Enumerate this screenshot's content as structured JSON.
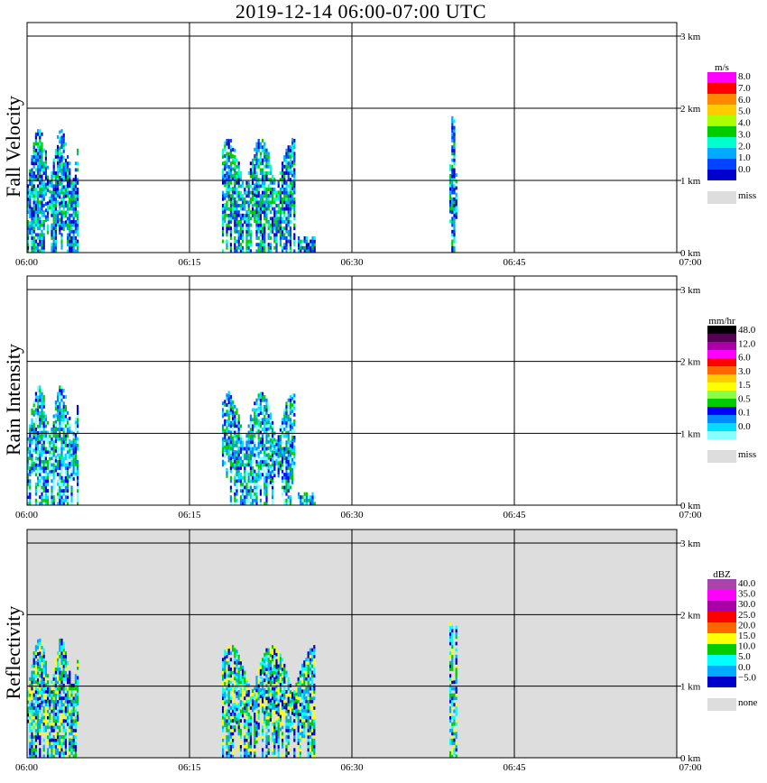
{
  "title": "2019-12-14   06:00-07:00 UTC",
  "x_ticks": [
    "06:00",
    "06:15",
    "06:30",
    "06:45",
    "07:00"
  ],
  "y_ticks": [
    "0 km",
    "1 km",
    "2 km",
    "3 km"
  ],
  "chart_data": [
    {
      "type": "heatmap",
      "title": "Fall Velocity",
      "xlabel": "",
      "ylabel": "Fall Velocity",
      "xlim": [
        "06:00",
        "07:00"
      ],
      "ylim": [
        0,
        3
      ],
      "background": "#ffffff",
      "legend": {
        "unit": "m/s",
        "labels": [
          "8.0",
          "7.0",
          "6.0",
          "5.0",
          "4.0",
          "3.0",
          "2.0",
          "1.0",
          "0.0",
          "miss"
        ],
        "colors": [
          "#ff00ff",
          "#ff0000",
          "#ff8800",
          "#ffcc00",
          "#aaff00",
          "#00cc00",
          "#00ffcc",
          "#00aaff",
          "#0044ff",
          "#0000cc"
        ],
        "miss_color": "#dddddd"
      },
      "echoes": [
        {
          "x0": "06:00",
          "x1": "06:04",
          "ytop": 1.7
        },
        {
          "x0": "06:18",
          "x1": "06:24",
          "ytop": 1.55
        },
        {
          "x0": "06:25",
          "x1": "06:26",
          "ytop": 0.2
        },
        {
          "x0": "06:39",
          "x1": "06:39",
          "ytop": 1.95
        }
      ]
    },
    {
      "type": "heatmap",
      "title": "Rain Intensity",
      "xlabel": "",
      "ylabel": "Rain Intensity",
      "xlim": [
        "06:00",
        "07:00"
      ],
      "ylim": [
        0,
        3
      ],
      "background": "#ffffff",
      "legend": {
        "unit": "mm/hr",
        "labels": [
          "48.0",
          "12.0",
          "6.0",
          "3.0",
          "1.5",
          "0.5",
          "0.1",
          "0.0",
          "miss"
        ],
        "colors": [
          "#000000",
          "#550055",
          "#aa00aa",
          "#ff00ff",
          "#ff0000",
          "#ff6600",
          "#ffcc00",
          "#ffff00",
          "#88ff44",
          "#00cc00",
          "#0000ff",
          "#0088ff",
          "#00ddff",
          "#88ffff"
        ],
        "miss_color": "#dddddd"
      },
      "echoes": [
        {
          "x0": "06:00",
          "x1": "06:04",
          "ytop": 1.65
        },
        {
          "x0": "06:18",
          "x1": "06:24",
          "ytop": 1.55
        },
        {
          "x0": "06:25",
          "x1": "06:26",
          "ytop": 0.15
        }
      ]
    },
    {
      "type": "heatmap",
      "title": "Reflectivity",
      "xlabel": "",
      "ylabel": "Reflectivity",
      "xlim": [
        "06:00",
        "07:00"
      ],
      "ylim": [
        0,
        3
      ],
      "background": "#dddddd",
      "legend": {
        "unit": "dBZ",
        "labels": [
          "40.0",
          "35.0",
          "30.0",
          "25.0",
          "20.0",
          "15.0",
          "10.0",
          "5.0",
          "0.0",
          "−5.0",
          "none"
        ],
        "colors": [
          "#aa44aa",
          "#ff00ff",
          "#aa00aa",
          "#ff0000",
          "#ff6600",
          "#ffff00",
          "#00cc00",
          "#00ffff",
          "#00aaff",
          "#0000cc"
        ],
        "miss_color": "#dddddd"
      },
      "echoes": [
        {
          "x0": "06:00",
          "x1": "06:04",
          "ytop": 1.65
        },
        {
          "x0": "06:18",
          "x1": "06:26",
          "ytop": 1.55
        },
        {
          "x0": "06:39",
          "x1": "06:39",
          "ytop": 1.95
        }
      ]
    }
  ]
}
